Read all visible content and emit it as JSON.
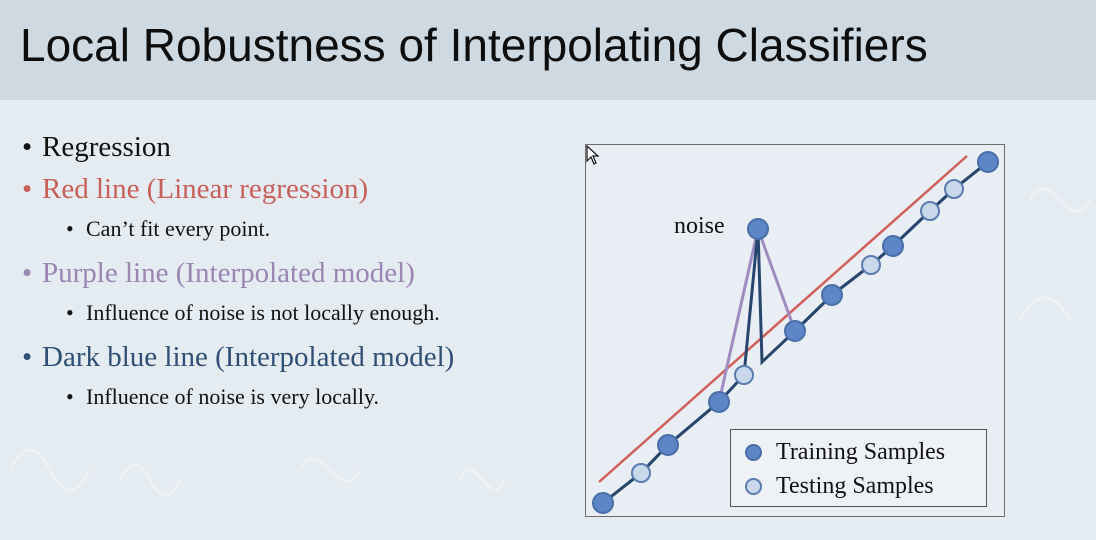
{
  "slide": {
    "title": "Local Robustness of Interpolating Classifiers"
  },
  "bullets": [
    {
      "text": "Regression",
      "color": "#111111",
      "sub": null
    },
    {
      "text": "Red line (Linear regression)",
      "color": "#c8605a",
      "sub": "Can’t fit every point."
    },
    {
      "text": "Purple line (Interpolated model)",
      "color": "#9b86b3",
      "sub": "Influence of noise is not locally enough."
    },
    {
      "text": "Dark blue line (Interpolated model)",
      "color": "#2f4f75",
      "sub": "Influence of noise is very locally."
    }
  ],
  "figure": {
    "noise_label": "noise",
    "legend": {
      "training": "Training Samples",
      "testing": "Testing Samples"
    },
    "colors": {
      "red_line": "#d2605a",
      "purple_line": "#a08cc0",
      "blue_line": "#27466e",
      "training_fill": "#5d86c6",
      "testing_fill": "#c9d8ea"
    },
    "icons": {
      "cursor": "mouse-pointer-icon"
    }
  }
}
